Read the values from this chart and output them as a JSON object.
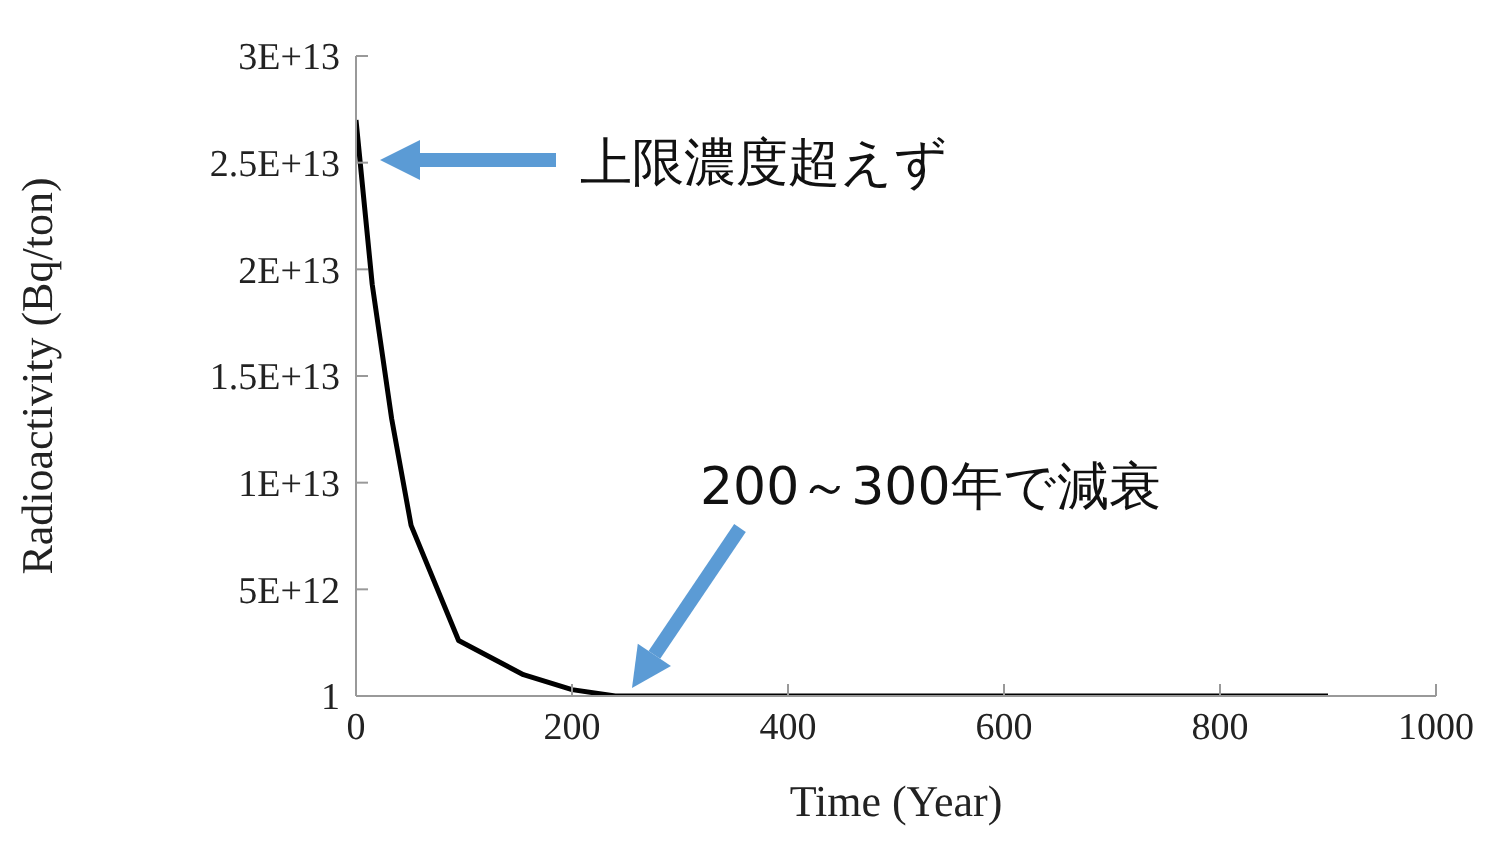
{
  "chart_data": {
    "type": "line",
    "xlabel": "Time (Year)",
    "ylabel": "Radioactivity (Bq/ton)",
    "x": [
      0,
      15,
      33,
      51,
      95,
      155,
      200,
      240,
      400,
      600,
      900
    ],
    "series": [
      {
        "color": "#000000",
        "values": [
          27000000000000,
          19300000000000,
          13000000000000,
          8000000000000,
          2600000000000,
          1000000000000,
          300000000000,
          1,
          1,
          1,
          1
        ]
      }
    ],
    "xlim": [
      0,
      1000
    ],
    "xticks": [
      0,
      200,
      400,
      600,
      800,
      1000
    ],
    "ylim": [
      1,
      30000000000000
    ],
    "yticks": [
      1,
      {
        "value": 5000000000000,
        "label": "5E+12"
      },
      {
        "value": 10000000000000,
        "label": "1E+13"
      },
      {
        "value": 15000000000000,
        "label": "1.5E+13"
      },
      {
        "value": 20000000000000,
        "label": "2E+13"
      },
      {
        "value": 25000000000000,
        "label": "2.5E+13"
      },
      {
        "value": 30000000000000,
        "label": "3E+13"
      }
    ],
    "marker": "none",
    "line_style": "solid",
    "annotations": [
      "上限濃度超えず",
      "200～300年で減衰"
    ]
  }
}
